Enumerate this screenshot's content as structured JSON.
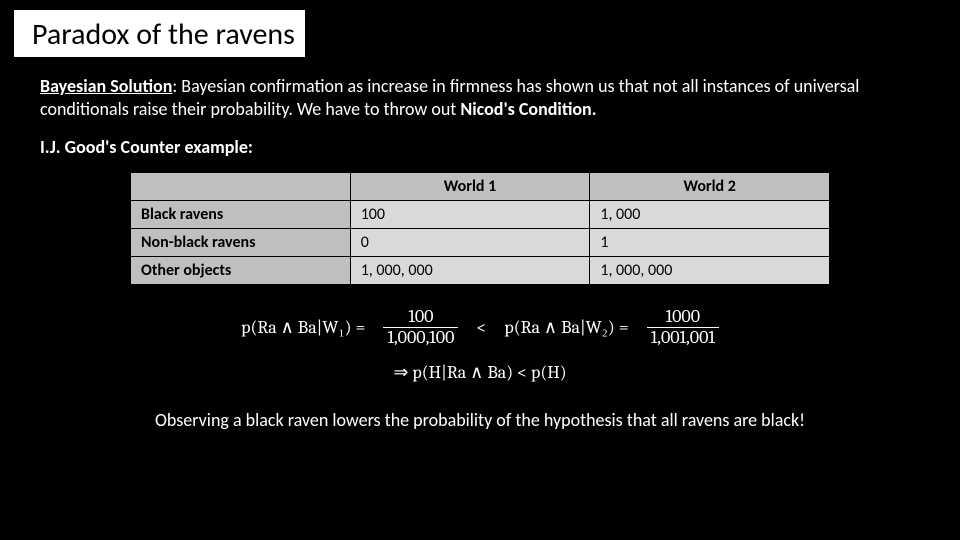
{
  "title": "Paradox of the ravens",
  "para_lead": "Bayesian Solution",
  "para_rest_1": ": Bayesian confirmation as increase in firmness has shown us that not all instances of universal conditionals raise their probability. We have to throw out ",
  "para_bold": "Nicod's Condition.",
  "subhead": "I.J. Good's Counter example",
  "subhead_suffix": ":",
  "table": {
    "col1": "World 1",
    "col2": "World 2",
    "rows": [
      {
        "label": "Black ravens",
        "c1": "100",
        "c2": "1, 000"
      },
      {
        "label": "Non-black ravens",
        "c1": "0",
        "c2": "1"
      },
      {
        "label": "Other objects",
        "c1": "1, 000, 000",
        "c2": "1, 000, 000"
      }
    ]
  },
  "math": {
    "lhs_label": "p(Ra ∧ Ba|W₁) =",
    "lhs_num": "100",
    "lhs_den": "1,000,100",
    "cmp": "<",
    "rhs_label": "p(Ra ∧ Ba|W₂) =",
    "rhs_num": "1000",
    "rhs_den": "1,001,001",
    "line2": "⇒ p(H|Ra ∧ Ba) < p(H)"
  },
  "conclusion": "Observing a black raven lowers the probability of the hypothesis that all ravens are black!",
  "colors": {
    "bg": "#000000",
    "text": "#ffffff",
    "table_header_bg": "#bfbfbf",
    "table_cell_bg": "#d9d9d9"
  }
}
